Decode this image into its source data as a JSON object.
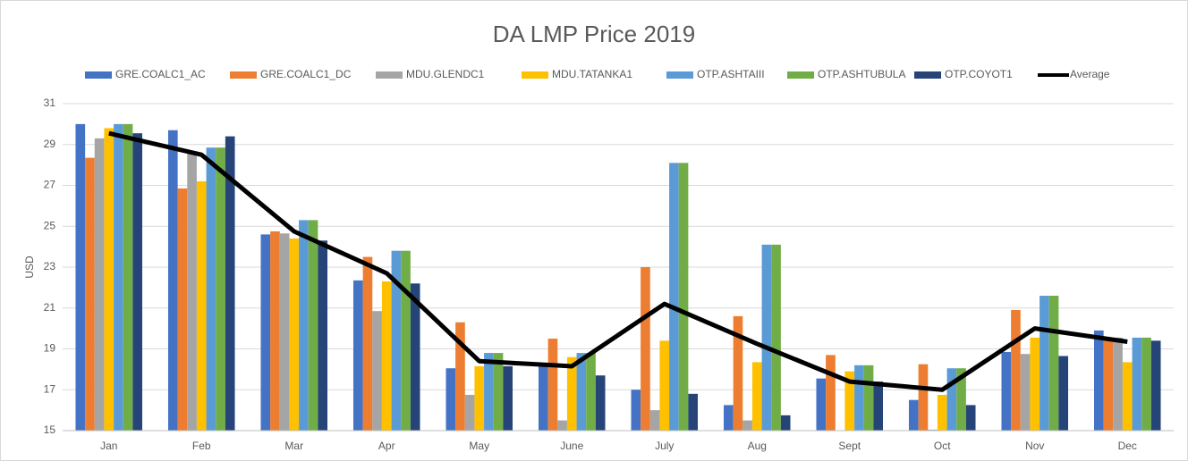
{
  "chart_data": {
    "type": "bar",
    "title": "DA LMP Price 2019",
    "y_label": "USD",
    "categories": [
      "Jan",
      "Feb",
      "Mar",
      "Apr",
      "May",
      "June",
      "July",
      "Aug",
      "Sept",
      "Oct",
      "Nov",
      "Dec"
    ],
    "ylim": [
      15,
      31
    ],
    "yticks": [
      15,
      17,
      19,
      21,
      23,
      25,
      27,
      29,
      31
    ],
    "grid": true,
    "legend": "top",
    "series": [
      {
        "name": "GRE.COALC1_AC",
        "color": "#4472c4",
        "values": [
          30.0,
          29.7,
          24.6,
          22.35,
          18.05,
          18.2,
          17.0,
          16.25,
          17.55,
          16.5,
          18.85,
          19.9
        ]
      },
      {
        "name": "GRE.COALC1_DC",
        "color": "#ed7d31",
        "values": [
          28.35,
          26.85,
          24.75,
          23.5,
          20.3,
          19.5,
          23.0,
          20.6,
          18.7,
          18.25,
          20.9,
          19.55
        ]
      },
      {
        "name": "MDU.GLENDC1",
        "color": "#a5a5a5",
        "values": [
          29.3,
          28.6,
          24.65,
          20.85,
          16.75,
          15.5,
          16.0,
          15.5,
          null,
          15.05,
          18.75,
          19.55
        ]
      },
      {
        "name": "MDU.TATANKA1",
        "color": "#ffc000",
        "values": [
          29.8,
          27.2,
          24.4,
          22.3,
          18.15,
          18.6,
          19.4,
          18.35,
          17.9,
          16.75,
          19.55,
          18.35
        ]
      },
      {
        "name": "OTP.ASHTAIII",
        "color": "#5b9bd5",
        "values": [
          30.0,
          28.85,
          25.3,
          23.8,
          18.8,
          18.8,
          28.1,
          24.1,
          18.2,
          18.05,
          21.6,
          19.55
        ]
      },
      {
        "name": "OTP.ASHTUBULA",
        "color": "#70ad47",
        "values": [
          30.0,
          28.85,
          25.3,
          23.8,
          18.8,
          18.8,
          28.1,
          24.1,
          18.2,
          18.05,
          21.6,
          19.55
        ]
      },
      {
        "name": "OTP.COYOT1",
        "color": "#264478",
        "values": [
          29.55,
          29.4,
          24.3,
          22.2,
          18.15,
          17.7,
          16.8,
          15.75,
          17.4,
          16.25,
          18.65,
          19.4
        ]
      },
      {
        "name": "Average",
        "color": "#000000",
        "type": "line",
        "values": [
          29.55,
          28.5,
          24.75,
          22.7,
          18.4,
          18.15,
          21.2,
          19.25,
          17.4,
          17.0,
          20.0,
          19.35
        ]
      }
    ]
  }
}
